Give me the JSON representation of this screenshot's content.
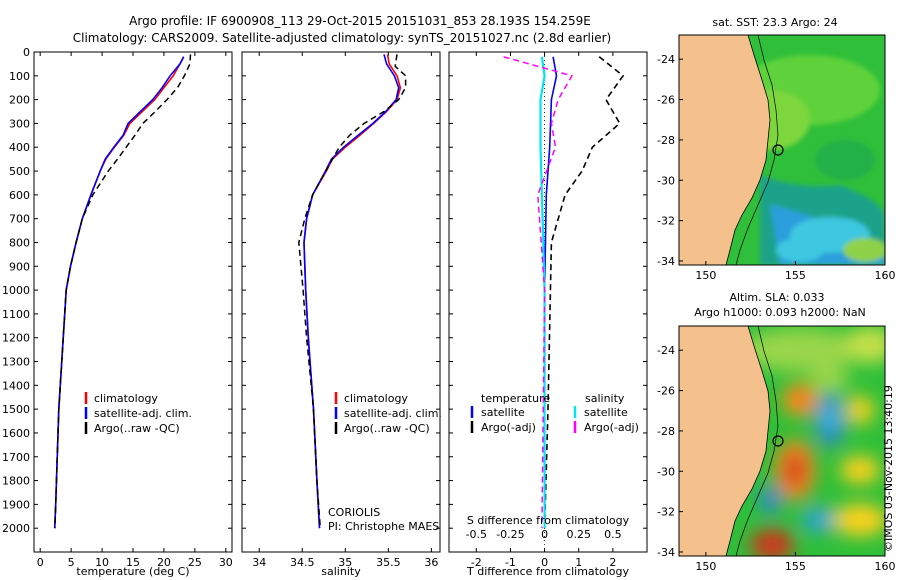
{
  "header": {
    "line1": "Argo profile: IF 6900908_113 29-Oct-2015 20151031_853 28.193S 154.259E",
    "line2": "Climatology: CARS2009. Satellite-adjusted climatology: synTS_20151027.nc (2.8d earlier)"
  },
  "annotations": {
    "coriolis": "CORIOLIS",
    "pi": "PI: Christophe MAES",
    "imos": "©IMOS 03-Nov-2015 13:40:19"
  },
  "colors": {
    "climatology": "#ff0000",
    "satellite": "#0000ff",
    "argo": "#000000",
    "s_satellite": "#00e5ee",
    "s_argo": "#ff00ff",
    "land": "#f4c08c"
  },
  "chart_data": [
    {
      "type": "line",
      "xlabel": "temperature (deg C)",
      "ylabel": "",
      "xlim": [
        -1,
        31
      ],
      "ylim": [
        2100,
        0
      ],
      "xticks": [
        "0",
        "5",
        "10",
        "15",
        "20",
        "25",
        "30"
      ],
      "yticks": [
        "0",
        "100",
        "200",
        "300",
        "400",
        "500",
        "600",
        "700",
        "800",
        "900",
        "1000",
        "1100",
        "1200",
        "1300",
        "1400",
        "1500",
        "1600",
        "1700",
        "1800",
        "1900",
        "2000"
      ],
      "legend": [
        "climatology",
        "satellite-adj. clim.",
        "Argo(..raw -QC)"
      ],
      "series": [
        {
          "name": "climatology",
          "x": [
            23.2,
            22.6,
            21.5,
            20.0,
            18.5,
            16.5,
            14.5,
            13.5,
            12.0,
            10.6,
            9.7,
            8.2,
            6.8,
            5.8,
            4.9,
            4.2,
            3.0,
            2.5,
            2.35
          ],
          "y": [
            20,
            50,
            100,
            150,
            200,
            250,
            300,
            350,
            400,
            450,
            500,
            600,
            700,
            800,
            900,
            1000,
            1500,
            1900,
            2000
          ]
        },
        {
          "name": "satellite-adj. clim.",
          "x": [
            23.2,
            22.6,
            21.0,
            19.7,
            18.2,
            16.2,
            14.2,
            13.4,
            11.9,
            10.5,
            9.7,
            8.2,
            6.8,
            5.8,
            4.9,
            4.2,
            3.0,
            2.5,
            2.35
          ],
          "y": [
            20,
            50,
            100,
            150,
            200,
            250,
            300,
            350,
            400,
            450,
            500,
            600,
            700,
            800,
            900,
            1000,
            1500,
            1900,
            2000
          ]
        },
        {
          "name": "Argo(..raw -QC)",
          "x": [
            24.3,
            24.2,
            23.3,
            22.2,
            20.5,
            18.6,
            16.6,
            15.3,
            13.9,
            12.5,
            11.0,
            8.5,
            6.8,
            5.8,
            4.9,
            4.2,
            3.0,
            2.5,
            2.4
          ],
          "y": [
            10,
            50,
            100,
            150,
            200,
            250,
            300,
            350,
            400,
            450,
            500,
            600,
            700,
            800,
            900,
            1000,
            1500,
            1900,
            2000
          ]
        }
      ]
    },
    {
      "type": "line",
      "xlabel": "salinity",
      "ylabel": "",
      "xlim": [
        33.8,
        36.1
      ],
      "ylim": [
        2100,
        0
      ],
      "xticks": [
        "34",
        "34.5",
        "35",
        "35.5",
        "36"
      ],
      "legend": [
        "climatology",
        "satellite-adj. clim.",
        "Argo(..raw -QC)"
      ],
      "series": [
        {
          "name": "climatology",
          "x": [
            35.49,
            35.51,
            35.6,
            35.64,
            35.6,
            35.48,
            35.33,
            35.17,
            35.0,
            34.85,
            34.78,
            34.62,
            34.55,
            34.52,
            34.54,
            34.57,
            34.63,
            34.67,
            34.7
          ],
          "y": [
            10,
            50,
            100,
            150,
            200,
            250,
            300,
            350,
            400,
            450,
            500,
            600,
            700,
            800,
            1000,
            1200,
            1500,
            1800,
            2000
          ]
        },
        {
          "name": "satellite-adj. clim.",
          "x": [
            35.45,
            35.48,
            35.57,
            35.62,
            35.59,
            35.47,
            35.32,
            35.15,
            34.98,
            34.84,
            34.77,
            34.62,
            34.55,
            34.52,
            34.54,
            34.57,
            34.63,
            34.67,
            34.7
          ],
          "y": [
            10,
            50,
            100,
            150,
            200,
            250,
            300,
            350,
            400,
            450,
            500,
            600,
            700,
            800,
            1000,
            1200,
            1500,
            1800,
            2000
          ]
        },
        {
          "name": "Argo(..raw -QC)",
          "x": [
            35.6,
            35.58,
            35.7,
            35.7,
            35.62,
            35.45,
            35.22,
            35.05,
            34.93,
            34.85,
            34.62,
            34.53,
            34.46,
            34.51,
            34.55,
            34.63,
            34.67,
            34.71
          ],
          "y": [
            10,
            60,
            100,
            150,
            200,
            250,
            300,
            350,
            400,
            450,
            600,
            700,
            800,
            1000,
            1200,
            1500,
            1800,
            2000
          ]
        }
      ]
    },
    {
      "type": "line",
      "xlabel": "T difference from climatology",
      "title2": "S difference from climatology",
      "xlim": [
        -2.8,
        3.0
      ],
      "xlim_s": [
        -0.7,
        0.75
      ],
      "ylim": [
        2100,
        0
      ],
      "xticks": [
        "-2",
        "-1",
        "0",
        "1",
        "2"
      ],
      "xticks_s": [
        "-0.5",
        "-0.25",
        "0",
        "0.25",
        "0.5"
      ],
      "legend_titles": [
        "temperature",
        "salinity"
      ],
      "legend": [
        "satellite",
        "Argo(-adj)",
        "satellite",
        "Argo(-adj)"
      ],
      "series": [
        {
          "name": "satellite",
          "x": [
            0.25,
            0.35,
            0.2,
            0.15,
            0.05,
            0.0,
            0.0
          ],
          "y": [
            20,
            100,
            200,
            400,
            600,
            1000,
            2000
          ]
        },
        {
          "name": "Argo(-adj)",
          "x": [
            1.6,
            2.3,
            1.8,
            2.2,
            1.4,
            1.1,
            0.6,
            0.2,
            0.1,
            0.0
          ],
          "y": [
            20,
            100,
            200,
            300,
            400,
            500,
            600,
            800,
            1500,
            2000
          ]
        },
        {
          "name": "satellite",
          "x": [
            -0.02,
            0.0,
            -0.03,
            -0.03,
            -0.02,
            0.0,
            0.0
          ],
          "y": [
            20,
            100,
            200,
            400,
            600,
            1000,
            2000
          ]
        },
        {
          "name": "Argo(-adj)",
          "x": [
            -0.3,
            0.2,
            0.1,
            0.05,
            0.08,
            -0.05,
            0.0,
            -0.02
          ],
          "y": [
            20,
            100,
            200,
            300,
            400,
            600,
            1000,
            2000
          ]
        }
      ]
    },
    {
      "type": "heatmap",
      "title": "sat. SST: 23.3 Argo: 24",
      "xticks": [
        "150",
        "155",
        "160"
      ],
      "yticks": [
        "-24",
        "-26",
        "-28",
        "-30",
        "-32",
        "-34"
      ],
      "xlim": [
        148.5,
        160
      ],
      "ylim": [
        -34.2,
        -22.8
      ],
      "marker": [
        154.26,
        -28.19
      ]
    },
    {
      "type": "heatmap",
      "title": "Altim. SLA: 0.033",
      "title2": "Argo h1000: 0.093 h2000: NaN",
      "xticks": [
        "150",
        "155",
        "160"
      ],
      "yticks": [
        "-24",
        "-26",
        "-28",
        "-30",
        "-32",
        "-34"
      ],
      "xlim": [
        148.5,
        160
      ],
      "ylim": [
        -34.2,
        -22.8
      ],
      "marker": [
        154.26,
        -28.19
      ]
    }
  ]
}
